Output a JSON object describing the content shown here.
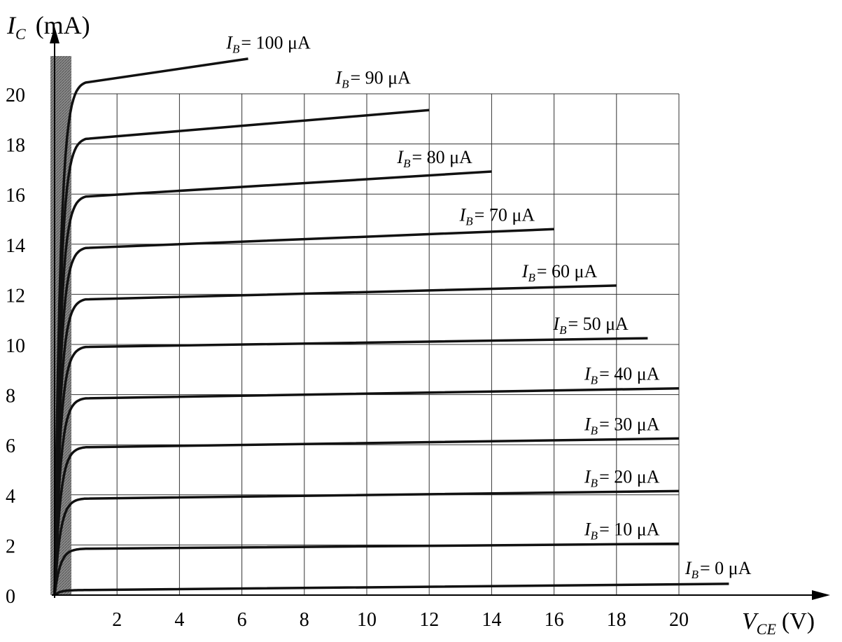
{
  "chart_data": {
    "type": "line",
    "x_axis": {
      "label_symbol": "V",
      "label_sub": "CE",
      "label_unit": "(V)",
      "range": [
        0,
        22
      ],
      "ticks": [
        2,
        4,
        6,
        8,
        10,
        12,
        14,
        16,
        18,
        20
      ]
    },
    "y_axis": {
      "label_symbol": "I",
      "label_sub": "C",
      "label_unit": "(mA)",
      "range": [
        0,
        21
      ],
      "ticks": [
        0,
        2,
        4,
        6,
        8,
        10,
        12,
        14,
        16,
        18,
        20
      ]
    },
    "grid": true,
    "saturation_region_shaded": true,
    "series": [
      {
        "label_symbol": "I",
        "label_sub": "B",
        "label_rest": "= 0 μA",
        "ib_uA": 0,
        "sat_current_mA": 0.2,
        "x_end": 21.6,
        "y_end": 0.45
      },
      {
        "label_symbol": "I",
        "label_sub": "B",
        "label_rest": "= 10 μA",
        "ib_uA": 10,
        "sat_current_mA": 1.85,
        "x_end": 20,
        "y_end": 2.05
      },
      {
        "label_symbol": "I",
        "label_sub": "B",
        "label_rest": "= 20 μA",
        "ib_uA": 20,
        "sat_current_mA": 3.85,
        "x_end": 20,
        "y_end": 4.15
      },
      {
        "label_symbol": "I",
        "label_sub": "B",
        "label_rest": "= 30 μA",
        "ib_uA": 30,
        "sat_current_mA": 5.9,
        "x_end": 20,
        "y_end": 6.25
      },
      {
        "label_symbol": "I",
        "label_sub": "B",
        "label_rest": "= 40 μA",
        "ib_uA": 40,
        "sat_current_mA": 7.85,
        "x_end": 20,
        "y_end": 8.25
      },
      {
        "label_symbol": "I",
        "label_sub": "B",
        "label_rest": "= 50 μA",
        "ib_uA": 50,
        "sat_current_mA": 9.9,
        "x_end": 19,
        "y_end": 10.25
      },
      {
        "label_symbol": "I",
        "label_sub": "B",
        "label_rest": "= 60 μA",
        "ib_uA": 60,
        "sat_current_mA": 11.8,
        "x_end": 18,
        "y_end": 12.35
      },
      {
        "label_symbol": "I",
        "label_sub": "B",
        "label_rest": "= 70 μA",
        "ib_uA": 70,
        "sat_current_mA": 13.85,
        "x_end": 16,
        "y_end": 14.6
      },
      {
        "label_symbol": "I",
        "label_sub": "B",
        "label_rest": "= 80 μA",
        "ib_uA": 80,
        "sat_current_mA": 15.9,
        "x_end": 14,
        "y_end": 16.9
      },
      {
        "label_symbol": "I",
        "label_sub": "B",
        "label_rest": "= 90 μA",
        "ib_uA": 90,
        "sat_current_mA": 18.2,
        "x_end": 12,
        "y_end": 19.35
      },
      {
        "label_symbol": "I",
        "label_sub": "B",
        "label_rest": "= 100 μA",
        "ib_uA": 100,
        "sat_current_mA": 20.45,
        "x_end": 6.2,
        "y_end": 21.4
      }
    ]
  }
}
